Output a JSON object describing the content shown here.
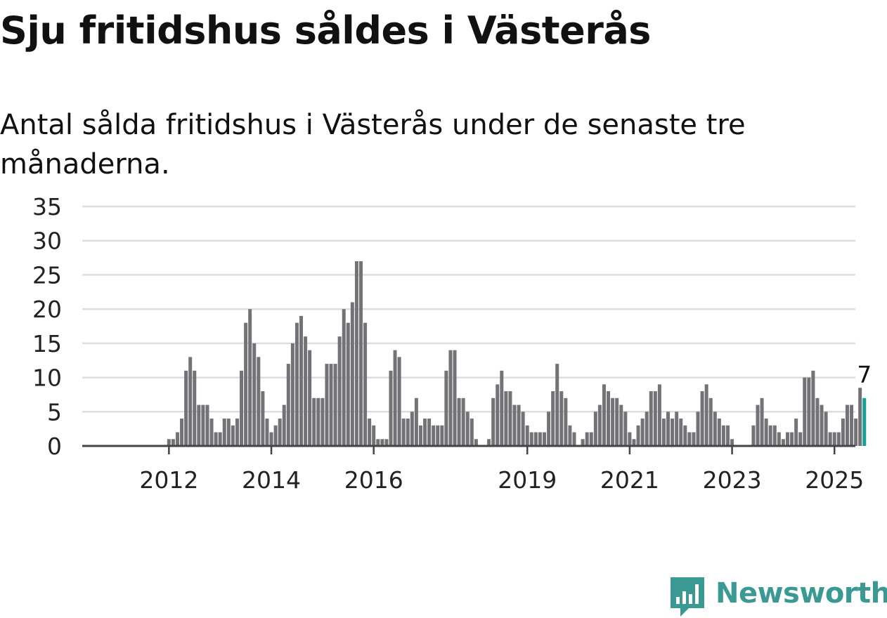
{
  "title": "Sju fritidshus såldes i Västerås",
  "subtitle": "Antal sålda fritidshus i Västerås under de senaste tre månaderna.",
  "brand": {
    "name": "Newsworthy",
    "color": "#3a9a93"
  },
  "colors": {
    "bar": "#737277",
    "highlight": "#16a196",
    "grid": "#dddddd",
    "axis": "#444444",
    "text": "#222222"
  },
  "chart_data": {
    "type": "bar",
    "title": "Sju fritidshus såldes i Västerås",
    "subtitle": "Antal sålda fritidshus i Västerås under de senaste tre månaderna.",
    "xlabel": "",
    "ylabel": "",
    "ylim": [
      0,
      35
    ],
    "yticks": [
      "0",
      "5",
      "10",
      "15",
      "20",
      "25",
      "30",
      "35"
    ],
    "grid": true,
    "start": "2011-01",
    "frequency": "monthly",
    "xticks": [
      {
        "label": "2012",
        "index": 12
      },
      {
        "label": "2014",
        "index": 36
      },
      {
        "label": "2016",
        "index": 60
      },
      {
        "label": "2019",
        "index": 96
      },
      {
        "label": "2021",
        "index": 120
      },
      {
        "label": "2023",
        "index": 144
      },
      {
        "label": "2025",
        "index": 168
      }
    ],
    "values": [
      0,
      0,
      0,
      0,
      0,
      0,
      0,
      0,
      0,
      0,
      0,
      0,
      1,
      1,
      2,
      4,
      11,
      13,
      11,
      6,
      6,
      6,
      4,
      2,
      2,
      4,
      4,
      3,
      4,
      11,
      18,
      20,
      15,
      13,
      8,
      4,
      2,
      3,
      4,
      6,
      12,
      15,
      18,
      19,
      16,
      14,
      7,
      7,
      7,
      12,
      12,
      12,
      16,
      20,
      18,
      21,
      27,
      27,
      18,
      4,
      3,
      1,
      1,
      1,
      11,
      14,
      13,
      4,
      4,
      5,
      7,
      3,
      4,
      4,
      3,
      3,
      3,
      11,
      14,
      14,
      7,
      7,
      5,
      4,
      1,
      0,
      0,
      1,
      7,
      9,
      11,
      8,
      8,
      6,
      6,
      5,
      3,
      2,
      2,
      2,
      2,
      5,
      8,
      12,
      8,
      7,
      3,
      2,
      0,
      1,
      2,
      2,
      5,
      6,
      9,
      8,
      7,
      7,
      6,
      5,
      2,
      1,
      3,
      4,
      5,
      8,
      8,
      9,
      4,
      5,
      4,
      5,
      4,
      3,
      2,
      2,
      5,
      8,
      9,
      7,
      5,
      4,
      3,
      3,
      1,
      0,
      0,
      0,
      0,
      3,
      6,
      7,
      4,
      3,
      3,
      2,
      1,
      2,
      2,
      4,
      2,
      10,
      10,
      11,
      7,
      6,
      5,
      2,
      2,
      2,
      4,
      6,
      6,
      4,
      8.5,
      7
    ],
    "highlight": {
      "value": 7,
      "label": "7"
    }
  }
}
